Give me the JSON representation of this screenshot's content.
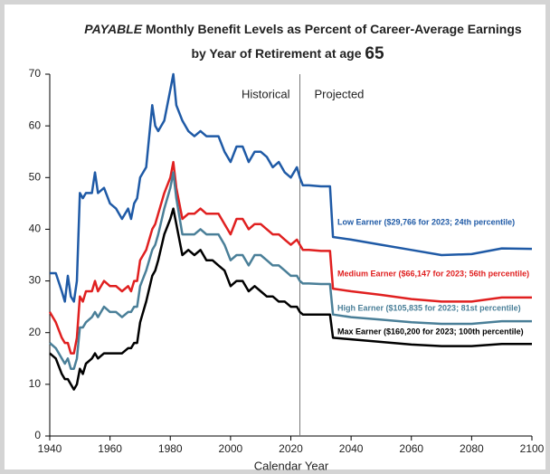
{
  "chart_data": {
    "type": "line",
    "title": [
      "PAYABLE",
      " Monthly Benefit Levels as Percent of Career-Average Earnings"
    ],
    "subtitle": [
      "by Year of Retirement at age ",
      "65"
    ],
    "xlabel": "Calendar Year",
    "annotations": [
      "Historical",
      "Projected"
    ],
    "divider": 2023,
    "xlim": [
      1940,
      2100
    ],
    "xticks": [
      1940,
      1960,
      1980,
      2000,
      2020,
      2040,
      2060,
      2080,
      2100
    ],
    "ylim": [
      0,
      70
    ],
    "yticks": [
      0,
      10,
      20,
      30,
      40,
      50,
      60,
      70
    ],
    "x": [
      1940,
      1942,
      1944,
      1945,
      1946,
      1947,
      1948,
      1949,
      1950,
      1951,
      1952,
      1954,
      1955,
      1956,
      1958,
      1960,
      1962,
      1964,
      1966,
      1967,
      1968,
      1969,
      1970,
      1972,
      1974,
      1975,
      1976,
      1978,
      1980,
      1981,
      1982,
      1984,
      1986,
      1988,
      1990,
      1992,
      1994,
      1996,
      1998,
      2000,
      2002,
      2004,
      2006,
      2008,
      2010,
      2012,
      2014,
      2016,
      2018,
      2020,
      2022,
      2023,
      2024,
      2026,
      2030,
      2033,
      2034,
      2040,
      2050,
      2060,
      2070,
      2080,
      2090,
      2100
    ],
    "series": [
      {
        "name": "Low Earner ($29,766 for 2023; 24th percentile)",
        "color": "#1f5aa6",
        "values": [
          31.5,
          31.5,
          28,
          26,
          31,
          27,
          26,
          30,
          47,
          46,
          47,
          47,
          51,
          47,
          48,
          45,
          44,
          42,
          44,
          42,
          45,
          46,
          50,
          52,
          64,
          60,
          59,
          61,
          67,
          70,
          64,
          61,
          59,
          58,
          59,
          58,
          58,
          58,
          55,
          53,
          56,
          56,
          53,
          55,
          55,
          54,
          52,
          53,
          51,
          50,
          52,
          50,
          48.5,
          48.5,
          48.3,
          48.3,
          38.5,
          38,
          37,
          36,
          35,
          35.2,
          36.3,
          36.2
        ]
      },
      {
        "name": "Medium Earner ($66,147 for 2023; 56th percentile)",
        "color": "#e02020",
        "values": [
          24,
          22,
          19,
          18,
          18,
          16,
          16,
          19,
          27,
          26,
          28,
          28,
          30,
          28,
          30,
          29,
          29,
          28,
          29,
          28,
          30,
          30,
          34,
          36,
          40,
          41,
          43,
          47,
          50,
          53,
          48,
          42,
          43,
          43,
          44,
          43,
          43,
          43,
          41,
          39,
          42,
          42,
          40,
          41,
          41,
          40,
          39,
          39,
          38,
          37,
          38,
          37,
          36,
          36,
          35.8,
          35.8,
          28.5,
          28,
          27.3,
          26.5,
          26,
          26,
          26.8,
          26.8
        ]
      },
      {
        "name": "High Earner ($105,835 for 2023; 81st percentile)",
        "color": "#4a7f98",
        "values": [
          18,
          17,
          15,
          14,
          15,
          13,
          13,
          15,
          21,
          21,
          22,
          23,
          24,
          23,
          25,
          24,
          24,
          23,
          24,
          24,
          25,
          25,
          29,
          32,
          36,
          37,
          39,
          44,
          48,
          51,
          46,
          39,
          39,
          39,
          40,
          39,
          39,
          39,
          37,
          34,
          35,
          35,
          33,
          35,
          35,
          34,
          33,
          33,
          32,
          31,
          31,
          30,
          29.5,
          29.5,
          29.4,
          29.4,
          23.5,
          23,
          22.5,
          22,
          21.7,
          21.7,
          22.2,
          22.2
        ]
      },
      {
        "name": "Max Earner ($160,200 for 2023; 100th percentile)",
        "color": "#000000",
        "values": [
          16,
          15,
          12,
          11,
          11,
          10,
          9,
          10,
          13,
          12,
          14,
          15,
          16,
          15,
          16,
          16,
          16,
          16,
          17,
          17,
          18,
          18,
          22,
          26,
          31,
          32,
          34,
          39,
          42,
          44,
          41,
          35,
          36,
          35,
          36,
          34,
          34,
          33,
          32,
          29,
          30,
          30,
          28,
          29,
          28,
          27,
          27,
          26,
          26,
          25,
          25,
          24,
          23.5,
          23.5,
          23.5,
          23.5,
          19,
          18.7,
          18.2,
          17.7,
          17.4,
          17.4,
          17.8,
          17.8
        ]
      }
    ]
  }
}
